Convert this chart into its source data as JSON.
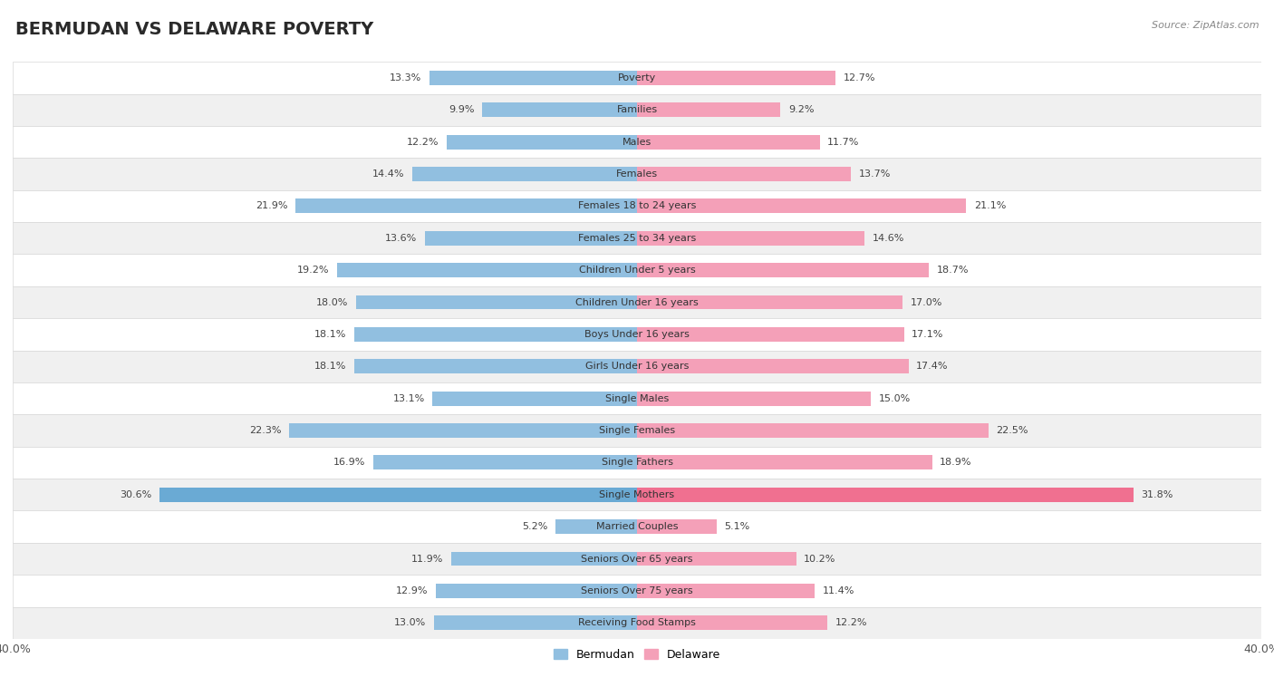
{
  "title": "BERMUDAN VS DELAWARE POVERTY",
  "source": "Source: ZipAtlas.com",
  "categories": [
    "Poverty",
    "Families",
    "Males",
    "Females",
    "Females 18 to 24 years",
    "Females 25 to 34 years",
    "Children Under 5 years",
    "Children Under 16 years",
    "Boys Under 16 years",
    "Girls Under 16 years",
    "Single Males",
    "Single Females",
    "Single Fathers",
    "Single Mothers",
    "Married Couples",
    "Seniors Over 65 years",
    "Seniors Over 75 years",
    "Receiving Food Stamps"
  ],
  "bermudan": [
    13.3,
    9.9,
    12.2,
    14.4,
    21.9,
    13.6,
    19.2,
    18.0,
    18.1,
    18.1,
    13.1,
    22.3,
    16.9,
    30.6,
    5.2,
    11.9,
    12.9,
    13.0
  ],
  "delaware": [
    12.7,
    9.2,
    11.7,
    13.7,
    21.1,
    14.6,
    18.7,
    17.0,
    17.1,
    17.4,
    15.0,
    22.5,
    18.9,
    31.8,
    5.1,
    10.2,
    11.4,
    12.2
  ],
  "bermudan_color": "#91bfe0",
  "delaware_color": "#f4a0b8",
  "highlight_bermudan_color": "#6aaad4",
  "highlight_delaware_color": "#f07090",
  "row_bg_white": "#ffffff",
  "row_bg_gray": "#f0f0f0",
  "row_border_color": "#d8d8d8",
  "axis_limit": 40.0,
  "bar_height": 0.45,
  "legend_label_left": "Bermudan",
  "legend_label_right": "Delaware",
  "title_fontsize": 14,
  "label_fontsize": 8,
  "tick_fontsize": 9
}
